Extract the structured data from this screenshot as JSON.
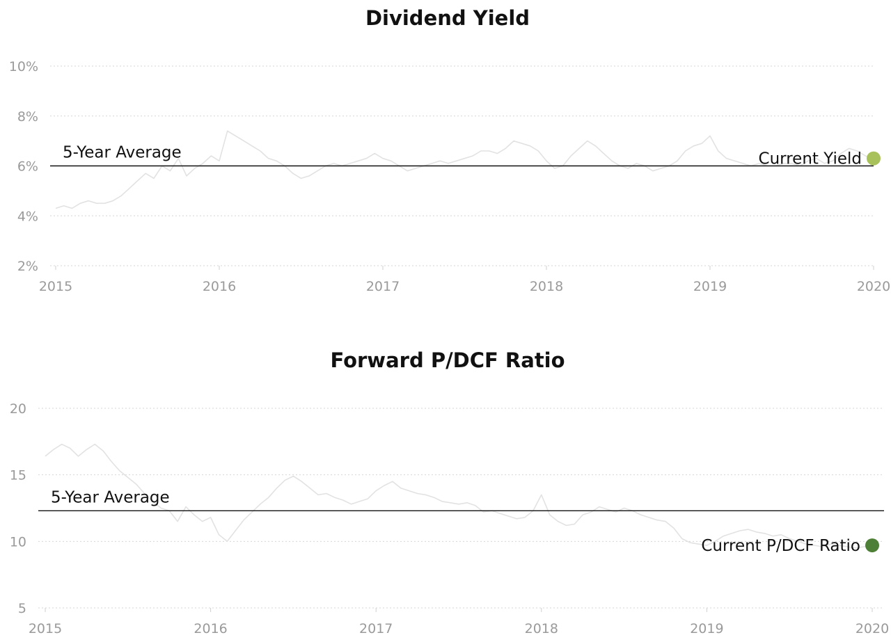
{
  "chart_data": [
    {
      "type": "line",
      "title": "Dividend Yield",
      "y_ticks": [
        "2%",
        "4%",
        "6%",
        "8%",
        "10%"
      ],
      "y_tick_values": [
        2,
        4,
        6,
        8,
        10
      ],
      "x_ticks": [
        "2015",
        "2016",
        "2017",
        "2018",
        "2019",
        "2020"
      ],
      "x_tick_values": [
        2015,
        2016,
        2017,
        2018,
        2019,
        2020
      ],
      "ylim": [
        2,
        10
      ],
      "xlim": [
        2015,
        2020
      ],
      "grid": true,
      "average_label": "5-Year Average",
      "average_value": 6.0,
      "current_label": "Current Yield",
      "current_value": 6.3,
      "current_x": 2020,
      "current_color": "#a9c15a",
      "series_color": "#e2e2e2",
      "series": [
        {
          "x": [
            2015.0,
            2015.05,
            2015.1,
            2015.15,
            2015.2,
            2015.25,
            2015.3,
            2015.35,
            2015.4,
            2015.45,
            2015.5,
            2015.55,
            2015.6,
            2015.65,
            2015.7,
            2015.75,
            2015.8,
            2015.85,
            2015.9,
            2015.95,
            2016.0,
            2016.05,
            2016.1,
            2016.15,
            2016.2,
            2016.25,
            2016.3,
            2016.35,
            2016.4,
            2016.45,
            2016.5,
            2016.55,
            2016.6,
            2016.65,
            2016.7,
            2016.75,
            2016.8,
            2016.85,
            2016.9,
            2016.95,
            2017.0,
            2017.05,
            2017.1,
            2017.15,
            2017.2,
            2017.25,
            2017.3,
            2017.35,
            2017.4,
            2017.45,
            2017.5,
            2017.55,
            2017.6,
            2017.65,
            2017.7,
            2017.75,
            2017.8,
            2017.85,
            2017.9,
            2017.95,
            2018.0,
            2018.05,
            2018.1,
            2018.15,
            2018.2,
            2018.25,
            2018.3,
            2018.35,
            2018.4,
            2018.45,
            2018.5,
            2018.55,
            2018.6,
            2018.65,
            2018.7,
            2018.75,
            2018.8,
            2018.85,
            2018.9,
            2018.95,
            2019.0,
            2019.05,
            2019.1,
            2019.15,
            2019.2,
            2019.25,
            2019.3,
            2019.35,
            2019.4,
            2019.45,
            2019.5,
            2019.55,
            2019.6,
            2019.65,
            2019.7,
            2019.75,
            2019.8,
            2019.85,
            2019.9,
            2019.95,
            2020.0
          ],
          "values": [
            4.3,
            4.4,
            4.3,
            4.5,
            4.6,
            4.5,
            4.5,
            4.6,
            4.8,
            5.1,
            5.4,
            5.7,
            5.5,
            6.0,
            5.8,
            6.3,
            5.6,
            5.9,
            6.1,
            6.4,
            6.2,
            7.4,
            7.2,
            7.0,
            6.8,
            6.6,
            6.3,
            6.2,
            6.0,
            5.7,
            5.5,
            5.6,
            5.8,
            6.0,
            6.1,
            6.0,
            6.1,
            6.2,
            6.3,
            6.5,
            6.3,
            6.2,
            6.0,
            5.8,
            5.9,
            6.0,
            6.1,
            6.2,
            6.1,
            6.2,
            6.3,
            6.4,
            6.6,
            6.6,
            6.5,
            6.7,
            7.0,
            6.9,
            6.8,
            6.6,
            6.2,
            5.9,
            6.0,
            6.4,
            6.7,
            7.0,
            6.8,
            6.5,
            6.2,
            6.0,
            5.9,
            6.1,
            6.0,
            5.8,
            5.9,
            6.0,
            6.2,
            6.6,
            6.8,
            6.9,
            7.2,
            6.6,
            6.3,
            6.2,
            6.1,
            6.0,
            6.1,
            6.0,
            6.0,
            6.1,
            6.1,
            6.0,
            6.2,
            6.3,
            6.1,
            6.2,
            6.5,
            6.7,
            6.6,
            6.4,
            6.3
          ]
        }
      ]
    },
    {
      "type": "line",
      "title": "Forward P/DCF Ratio",
      "y_ticks": [
        "5",
        "10",
        "15",
        "20"
      ],
      "y_tick_values": [
        5,
        10,
        15,
        20
      ],
      "x_ticks": [
        "2015",
        "2016",
        "2017",
        "2018",
        "2019",
        "2020"
      ],
      "x_tick_values": [
        2015,
        2016,
        2017,
        2018,
        2019,
        2020
      ],
      "ylim": [
        5,
        20
      ],
      "xlim": [
        2015,
        2020
      ],
      "grid": true,
      "average_label": "5-Year Average",
      "average_value": 12.3,
      "current_label": "Current P/DCF Ratio",
      "current_value": 9.7,
      "current_x": 2020,
      "current_color": "#4e7f37",
      "series_color": "#e2e2e2",
      "series": [
        {
          "x": [
            2015.0,
            2015.05,
            2015.1,
            2015.15,
            2015.2,
            2015.25,
            2015.3,
            2015.35,
            2015.4,
            2015.45,
            2015.5,
            2015.55,
            2015.6,
            2015.65,
            2015.7,
            2015.75,
            2015.8,
            2015.85,
            2015.9,
            2015.95,
            2016.0,
            2016.05,
            2016.1,
            2016.15,
            2016.2,
            2016.25,
            2016.3,
            2016.35,
            2016.4,
            2016.45,
            2016.5,
            2016.55,
            2016.6,
            2016.65,
            2016.7,
            2016.75,
            2016.8,
            2016.85,
            2016.9,
            2016.95,
            2017.0,
            2017.05,
            2017.1,
            2017.15,
            2017.2,
            2017.25,
            2017.3,
            2017.35,
            2017.4,
            2017.45,
            2017.5,
            2017.55,
            2017.6,
            2017.65,
            2017.7,
            2017.75,
            2017.8,
            2017.85,
            2017.9,
            2017.95,
            2018.0,
            2018.05,
            2018.1,
            2018.15,
            2018.2,
            2018.25,
            2018.3,
            2018.35,
            2018.4,
            2018.45,
            2018.5,
            2018.55,
            2018.6,
            2018.65,
            2018.7,
            2018.75,
            2018.8,
            2018.85,
            2018.9,
            2018.95,
            2019.0,
            2019.05,
            2019.1,
            2019.15,
            2019.2,
            2019.25,
            2019.3,
            2019.35,
            2019.4,
            2019.45,
            2019.5,
            2019.55,
            2019.6,
            2019.65,
            2019.7,
            2019.75,
            2019.8,
            2019.85,
            2019.9,
            2019.95,
            2020.0
          ],
          "values": [
            16.4,
            16.9,
            17.3,
            17.0,
            16.4,
            16.9,
            17.3,
            16.8,
            16.0,
            15.3,
            14.8,
            14.3,
            13.6,
            13.0,
            12.5,
            12.3,
            11.5,
            12.6,
            12.0,
            11.5,
            11.8,
            10.5,
            10.0,
            10.8,
            11.6,
            12.2,
            12.8,
            13.3,
            14.0,
            14.6,
            14.9,
            14.5,
            14.0,
            13.5,
            13.6,
            13.3,
            13.1,
            12.8,
            13.0,
            13.2,
            13.8,
            14.2,
            14.5,
            14.0,
            13.8,
            13.6,
            13.5,
            13.3,
            13.0,
            12.9,
            12.8,
            12.9,
            12.7,
            12.2,
            12.3,
            12.1,
            11.9,
            11.7,
            11.8,
            12.3,
            13.5,
            12.0,
            11.5,
            11.2,
            11.3,
            12.0,
            12.2,
            12.6,
            12.4,
            12.2,
            12.5,
            12.3,
            12.0,
            11.8,
            11.6,
            11.5,
            11.0,
            10.2,
            9.9,
            9.8,
            9.7,
            10.0,
            10.4,
            10.6,
            10.8,
            10.9,
            10.7,
            10.6,
            10.4,
            10.5,
            10.2,
            10.0,
            9.8,
            9.7,
            9.6,
            9.8,
            9.7,
            9.6,
            9.5,
            9.6,
            9.7
          ]
        }
      ]
    }
  ]
}
